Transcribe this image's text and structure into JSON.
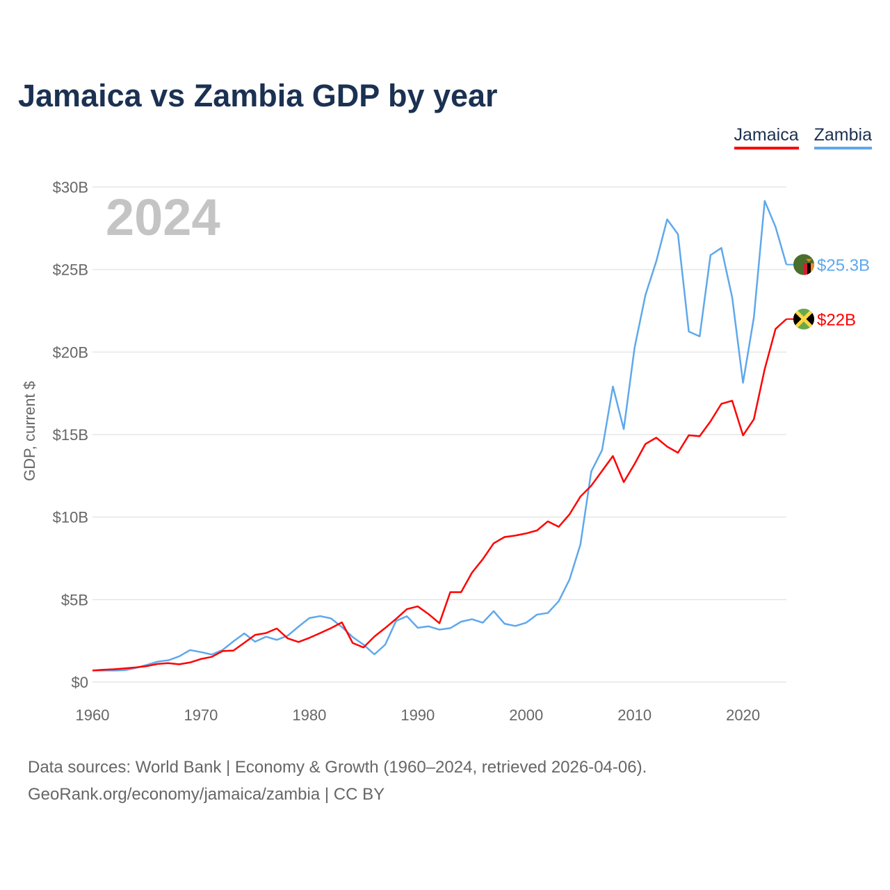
{
  "title": "Jamaica vs Zambia GDP by year",
  "legend": [
    {
      "name": "Jamaica",
      "color": "#ff0000"
    },
    {
      "name": "Zambia",
      "color": "#5ea8ec"
    }
  ],
  "year_label": "2024",
  "footer": {
    "line1": "Data sources: World Bank | Economy & Growth (1960–2024, retrieved 2026-04-06).",
    "line2": "GeoRank.org/economy/jamaica/zambia | CC BY"
  },
  "chart_data": {
    "type": "line",
    "title": "Jamaica vs Zambia GDP by year",
    "xlabel": "",
    "ylabel": "GDP, current $",
    "xlim": [
      1960,
      2024
    ],
    "ylim": [
      0,
      30
    ],
    "x_ticks": [
      1960,
      1970,
      1980,
      1990,
      2000,
      2010,
      2020
    ],
    "y_ticks": [
      0,
      5,
      10,
      15,
      20,
      25,
      30
    ],
    "y_tick_labels": [
      "$0",
      "$5B",
      "$10B",
      "$15B",
      "$20B",
      "$25B",
      "$30B"
    ],
    "grid": true,
    "legend_position": "top-right",
    "x_start": 1960,
    "series": [
      {
        "name": "Jamaica",
        "color": "#ff0000",
        "end_label": "$22B",
        "flag": "jamaica-flag",
        "values": [
          0.7,
          0.75,
          0.78,
          0.83,
          0.89,
          0.97,
          1.1,
          1.15,
          1.08,
          1.19,
          1.4,
          1.53,
          1.88,
          1.91,
          2.38,
          2.86,
          2.97,
          3.25,
          2.65,
          2.43,
          2.68,
          2.97,
          3.27,
          3.62,
          2.37,
          2.1,
          2.76,
          3.28,
          3.83,
          4.42,
          4.59,
          4.12,
          3.57,
          5.45,
          5.45,
          6.63,
          7.45,
          8.41,
          8.79,
          8.88,
          9.01,
          9.19,
          9.74,
          9.41,
          10.17,
          11.24,
          11.9,
          12.8,
          13.7,
          12.12,
          13.22,
          14.43,
          14.81,
          14.27,
          13.9,
          14.96,
          14.9,
          15.8,
          16.86,
          17.05,
          14.95,
          15.93,
          18.97,
          21.4,
          22.0
        ]
      },
      {
        "name": "Zambia",
        "color": "#5ea8ec",
        "end_label": "$25.3B",
        "flag": "zambia-flag",
        "values": [
          0.71,
          0.7,
          0.7,
          0.72,
          0.86,
          1.04,
          1.24,
          1.32,
          1.56,
          1.94,
          1.82,
          1.67,
          1.95,
          2.47,
          2.95,
          2.45,
          2.75,
          2.56,
          2.81,
          3.36,
          3.88,
          4.0,
          3.86,
          3.34,
          2.73,
          2.27,
          1.68,
          2.27,
          3.71,
          3.99,
          3.29,
          3.38,
          3.18,
          3.27,
          3.66,
          3.81,
          3.6,
          4.3,
          3.54,
          3.4,
          3.6,
          4.09,
          4.19,
          4.9,
          6.22,
          8.33,
          12.76,
          14.06,
          17.91,
          15.33,
          20.27,
          23.46,
          25.5,
          28.04,
          27.14,
          21.24,
          20.95,
          25.87,
          26.31,
          23.31,
          18.14,
          22.1,
          29.16,
          27.58,
          25.3
        ]
      }
    ]
  }
}
